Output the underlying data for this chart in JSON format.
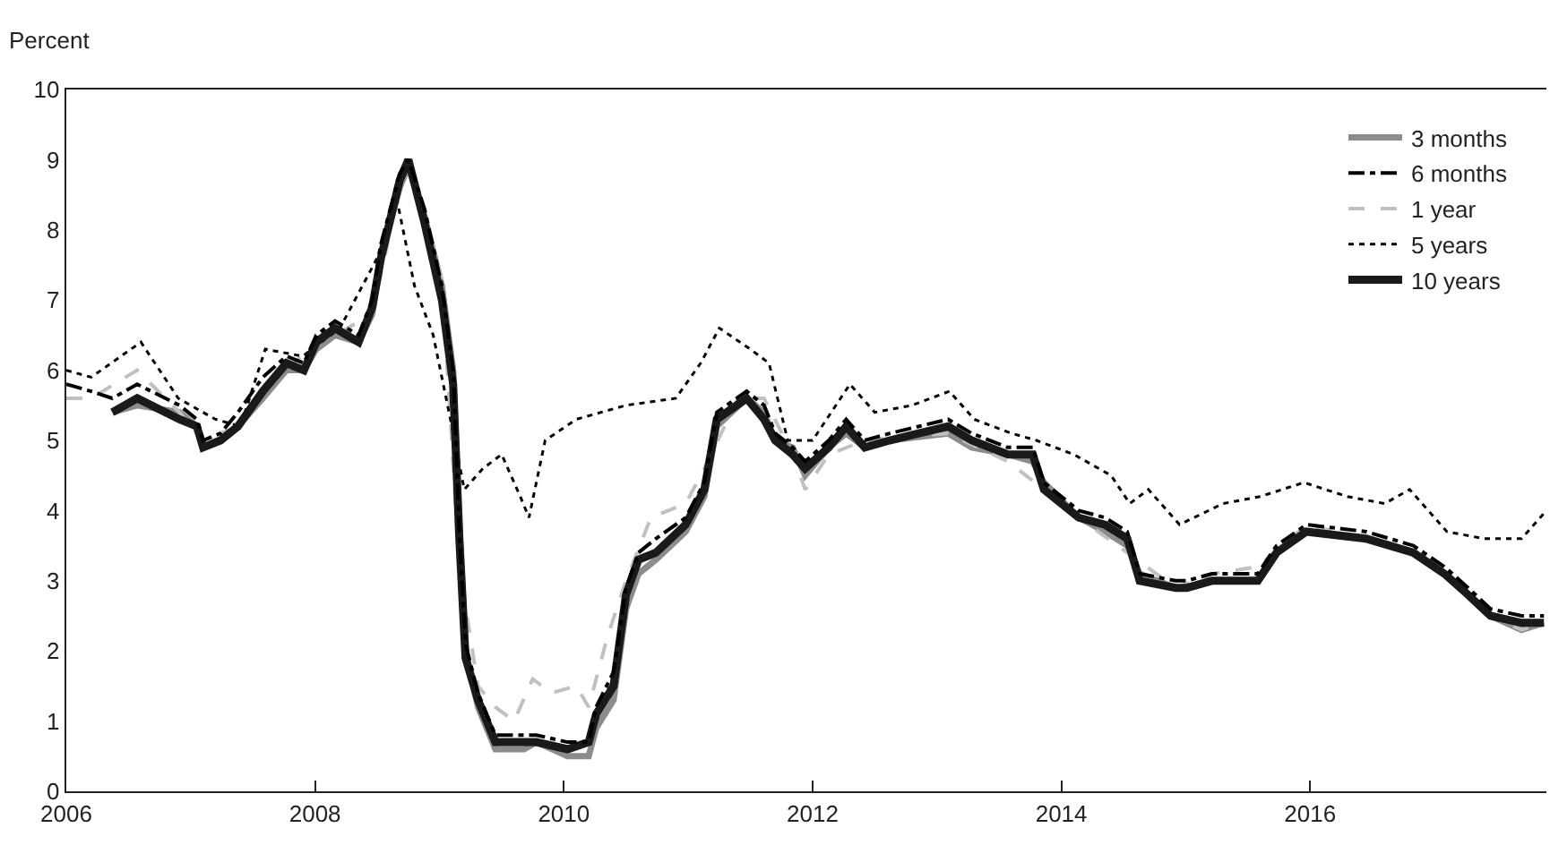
{
  "chart_data": {
    "type": "line",
    "ylabel": "Percent",
    "xlim": [
      2006,
      2017.9
    ],
    "xticks": [
      2006,
      2008,
      2010,
      2012,
      2014,
      2016
    ],
    "ylim": [
      0,
      10
    ],
    "yticks": [
      0,
      1,
      2,
      3,
      4,
      5,
      6,
      7,
      8,
      9,
      10
    ],
    "grid": false,
    "legend": "top right",
    "marker": "none",
    "series": [
      {
        "name": "3 months",
        "color": "#8c8c8c",
        "line_style": "solid",
        "x": [
          2006.37,
          2006.57,
          2006.91,
          2007.05,
          2007.1,
          2007.24,
          2007.38,
          2007.58,
          2007.77,
          2007.91,
          2008.01,
          2008.16,
          2008.35,
          2008.46,
          2008.53,
          2008.68,
          2008.75,
          2008.88,
          2009.02,
          2009.11,
          2009.16,
          2009.21,
          2009.31,
          2009.45,
          2009.68,
          2009.78,
          2010.03,
          2010.2,
          2010.26,
          2010.4,
          2010.5,
          2010.6,
          2010.74,
          2010.98,
          2011.13,
          2011.23,
          2011.47,
          2011.61,
          2011.7,
          2011.84,
          2011.94,
          2012.13,
          2012.27,
          2012.42,
          2012.62,
          2013.09,
          2013.28,
          2013.57,
          2013.77,
          2013.86,
          2014.14,
          2014.35,
          2014.53,
          2014.63,
          2014.92,
          2015.01,
          2015.21,
          2015.58,
          2015.73,
          2015.97,
          2016.45,
          2016.83,
          2017.08,
          2017.27,
          2017.45,
          2017.7,
          2017.88
        ],
        "values": [
          5.4,
          5.5,
          5.4,
          5.2,
          4.9,
          5.0,
          5.2,
          5.6,
          6.0,
          6.0,
          6.3,
          6.5,
          6.4,
          6.8,
          7.6,
          8.6,
          8.9,
          8.2,
          7.2,
          6.0,
          3.8,
          2.0,
          1.2,
          0.6,
          0.6,
          0.7,
          0.5,
          0.5,
          0.9,
          1.3,
          2.6,
          3.1,
          3.3,
          3.7,
          4.2,
          5.2,
          5.6,
          5.4,
          5.0,
          4.9,
          4.5,
          4.9,
          5.1,
          4.9,
          5.0,
          5.1,
          4.9,
          4.8,
          4.7,
          4.4,
          3.9,
          3.7,
          3.5,
          3.1,
          2.9,
          2.9,
          3.0,
          3.0,
          3.4,
          3.7,
          3.6,
          3.4,
          3.1,
          2.8,
          2.5,
          2.3,
          2.4
        ]
      },
      {
        "name": "6 months",
        "color": "#000000",
        "line_style": "dashdot",
        "x": [
          2006.0,
          2006.2,
          2006.37,
          2006.57,
          2006.91,
          2007.05,
          2007.1,
          2007.24,
          2007.38,
          2007.58,
          2007.77,
          2007.91,
          2008.01,
          2008.16,
          2008.35,
          2008.46,
          2008.53,
          2008.68,
          2008.75,
          2008.88,
          2009.02,
          2009.11,
          2009.16,
          2009.21,
          2009.31,
          2009.45,
          2009.68,
          2009.78,
          2010.03,
          2010.2,
          2010.26,
          2010.4,
          2010.5,
          2010.6,
          2010.74,
          2010.98,
          2011.13,
          2011.23,
          2011.47,
          2011.61,
          2011.7,
          2011.84,
          2011.94,
          2012.13,
          2012.27,
          2012.42,
          2012.62,
          2013.09,
          2013.28,
          2013.57,
          2013.77,
          2013.86,
          2014.14,
          2014.35,
          2014.53,
          2014.63,
          2014.92,
          2015.01,
          2015.21,
          2015.58,
          2015.73,
          2015.97,
          2016.45,
          2016.83,
          2017.08,
          2017.27,
          2017.45,
          2017.7,
          2017.88
        ],
        "values": [
          5.8,
          5.7,
          5.6,
          5.8,
          5.5,
          5.3,
          5.0,
          5.1,
          5.4,
          5.9,
          6.2,
          6.1,
          6.5,
          6.7,
          6.5,
          7.0,
          7.8,
          8.8,
          9.0,
          8.3,
          7.2,
          6.0,
          3.7,
          2.1,
          1.4,
          0.8,
          0.8,
          0.8,
          0.7,
          0.7,
          1.2,
          1.7,
          2.9,
          3.4,
          3.6,
          3.9,
          4.4,
          5.4,
          5.7,
          5.5,
          5.1,
          4.9,
          4.7,
          5.0,
          5.3,
          5.0,
          5.1,
          5.3,
          5.1,
          4.9,
          4.9,
          4.4,
          4.0,
          3.9,
          3.7,
          3.1,
          3.0,
          3.0,
          3.1,
          3.1,
          3.5,
          3.8,
          3.7,
          3.5,
          3.2,
          2.9,
          2.6,
          2.5,
          2.5
        ]
      },
      {
        "name": "1 year",
        "color": "#c0c0c0",
        "line_style": "dashed",
        "x": [
          2006.0,
          2006.2,
          2006.57,
          2006.91,
          2007.1,
          2007.38,
          2007.58,
          2007.77,
          2008.01,
          2008.16,
          2008.46,
          2008.68,
          2008.75,
          2008.88,
          2009.02,
          2009.16,
          2009.31,
          2009.45,
          2009.6,
          2009.75,
          2009.9,
          2010.1,
          2010.2,
          2010.35,
          2010.5,
          2010.7,
          2010.98,
          2011.13,
          2011.4,
          2011.61,
          2011.84,
          2011.94,
          2012.13,
          2012.42,
          2013.09,
          2013.57,
          2013.86,
          2014.14,
          2014.53,
          2014.92,
          2015.21,
          2015.58,
          2015.97,
          2016.45,
          2016.83,
          2017.08,
          2017.45,
          2017.7,
          2017.88
        ],
        "values": [
          5.6,
          5.6,
          6.0,
          5.4,
          5.0,
          5.2,
          5.7,
          6.0,
          6.4,
          6.5,
          6.8,
          8.6,
          8.9,
          8.2,
          7.3,
          3.2,
          1.5,
          1.2,
          1.0,
          1.6,
          1.4,
          1.5,
          1.2,
          2.2,
          3.0,
          3.9,
          4.1,
          4.6,
          5.6,
          5.6,
          4.8,
          4.3,
          4.8,
          5.0,
          5.1,
          4.7,
          4.3,
          3.9,
          3.4,
          2.9,
          3.1,
          3.2,
          3.8,
          3.6,
          3.4,
          3.1,
          2.5,
          2.3,
          2.4
        ]
      },
      {
        "name": "5 years",
        "color": "#000000",
        "line_style": "dotted",
        "x": [
          2006.0,
          2006.2,
          2006.6,
          2006.9,
          2007.2,
          2007.4,
          2007.6,
          2007.9,
          2008.2,
          2008.5,
          2008.65,
          2008.8,
          2008.95,
          2009.1,
          2009.2,
          2009.35,
          2009.5,
          2009.65,
          2009.72,
          2009.85,
          2010.1,
          2010.5,
          2010.9,
          2011.1,
          2011.25,
          2011.5,
          2011.65,
          2011.8,
          2012.0,
          2012.3,
          2012.5,
          2012.8,
          2013.1,
          2013.3,
          2013.6,
          2013.8,
          2014.1,
          2014.4,
          2014.55,
          2014.7,
          2014.95,
          2015.3,
          2015.6,
          2015.95,
          2016.3,
          2016.6,
          2016.8,
          2017.0,
          2017.1,
          2017.4,
          2017.7,
          2017.9
        ],
        "values": [
          6.0,
          5.9,
          6.4,
          5.6,
          5.3,
          5.2,
          6.3,
          6.2,
          6.6,
          7.6,
          8.5,
          7.2,
          6.5,
          5.2,
          4.3,
          4.6,
          4.8,
          4.2,
          3.9,
          5.0,
          5.3,
          5.5,
          5.6,
          6.1,
          6.6,
          6.3,
          6.1,
          5.0,
          5.0,
          5.8,
          5.4,
          5.5,
          5.7,
          5.3,
          5.1,
          5.0,
          4.8,
          4.5,
          4.1,
          4.3,
          3.8,
          4.1,
          4.2,
          4.4,
          4.2,
          4.1,
          4.3,
          3.9,
          3.7,
          3.6,
          3.6,
          4.0
        ]
      },
      {
        "name": "10 years",
        "color": "#1a1a1a",
        "line_style": "solid",
        "x": [
          2006.37,
          2006.57,
          2006.91,
          2007.05,
          2007.1,
          2007.24,
          2007.38,
          2007.58,
          2007.77,
          2007.91,
          2008.01,
          2008.16,
          2008.35,
          2008.46,
          2008.53,
          2008.68,
          2008.75,
          2008.88,
          2009.02,
          2009.11,
          2009.16,
          2009.21,
          2009.31,
          2009.45,
          2009.68,
          2009.78,
          2010.03,
          2010.2,
          2010.26,
          2010.4,
          2010.5,
          2010.6,
          2010.74,
          2010.98,
          2011.13,
          2011.23,
          2011.47,
          2011.61,
          2011.7,
          2011.84,
          2011.94,
          2012.13,
          2012.27,
          2012.42,
          2012.62,
          2013.09,
          2013.28,
          2013.57,
          2013.77,
          2013.86,
          2014.14,
          2014.35,
          2014.53,
          2014.63,
          2014.92,
          2015.01,
          2015.21,
          2015.58,
          2015.73,
          2015.97,
          2016.45,
          2016.83,
          2017.08,
          2017.27,
          2017.45,
          2017.7,
          2017.88
        ],
        "values": [
          5.4,
          5.6,
          5.3,
          5.2,
          4.9,
          5.0,
          5.2,
          5.7,
          6.1,
          6.0,
          6.4,
          6.6,
          6.4,
          6.9,
          7.6,
          8.7,
          9.0,
          8.1,
          7.0,
          5.8,
          3.6,
          1.9,
          1.3,
          0.7,
          0.7,
          0.7,
          0.6,
          0.7,
          1.1,
          1.5,
          2.8,
          3.3,
          3.4,
          3.8,
          4.3,
          5.3,
          5.6,
          5.3,
          5.0,
          4.8,
          4.6,
          4.9,
          5.2,
          4.9,
          5.0,
          5.2,
          5.0,
          4.8,
          4.8,
          4.3,
          3.9,
          3.8,
          3.6,
          3.0,
          2.9,
          2.9,
          3.0,
          3.0,
          3.4,
          3.7,
          3.6,
          3.4,
          3.1,
          2.8,
          2.5,
          2.4,
          2.4
        ]
      }
    ]
  }
}
